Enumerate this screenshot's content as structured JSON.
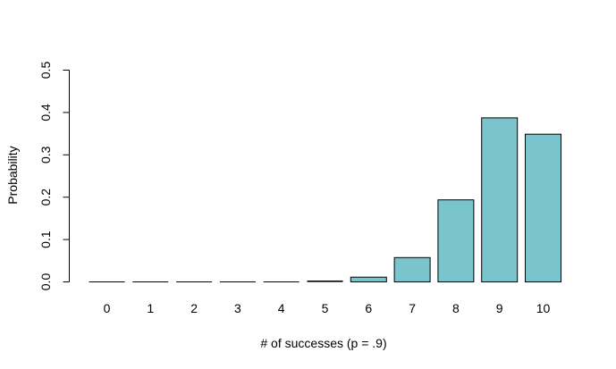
{
  "chart_data": {
    "type": "bar",
    "categories": [
      "0",
      "1",
      "2",
      "3",
      "4",
      "5",
      "6",
      "7",
      "8",
      "9",
      "10"
    ],
    "values": [
      0.0,
      0.0,
      0.0,
      0.0,
      0.0001,
      0.0015,
      0.0112,
      0.0574,
      0.1937,
      0.3874,
      0.3487
    ],
    "title": "",
    "xlabel": "# of successes (p = .9)",
    "ylabel": "Probability",
    "ylim": [
      0,
      0.5
    ],
    "yticks": [
      "0.0",
      "0.1",
      "0.2",
      "0.3",
      "0.4",
      "0.5"
    ],
    "bar_color": "#7AC5CD",
    "bar_edge_color": "#000000",
    "grid": false,
    "legend": "none"
  }
}
